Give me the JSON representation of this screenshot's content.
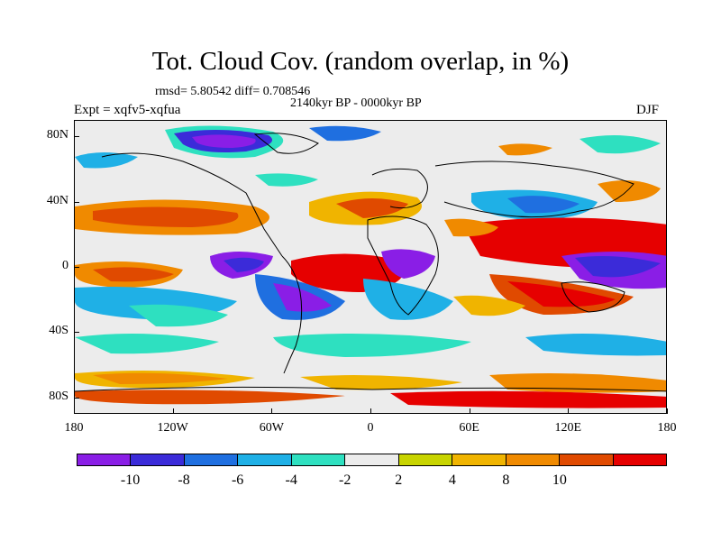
{
  "title": "Tot. Cloud Cov. (random overlap, in %)",
  "stats": "rmsd= 5.80542 diff= 0.708546",
  "period": "2140kyr BP - 0000kyr BP",
  "experiment": "Expt = xqfv5-xqfua",
  "season": "DJF",
  "lat_labels": [
    "80N",
    "40N",
    "0",
    "40S",
    "80S"
  ],
  "lat_values": [
    80,
    40,
    0,
    -40,
    -80
  ],
  "lon_labels": [
    "180",
    "120W",
    "60W",
    "0",
    "60E",
    "120E",
    "180"
  ],
  "lon_values": [
    -180,
    -120,
    -60,
    0,
    60,
    120,
    180
  ],
  "colorbar": {
    "labels": [
      "-10",
      "-8",
      "-6",
      "-4",
      "-2",
      "2",
      "4",
      "8",
      "10"
    ],
    "colors": [
      "#8a1ee6",
      "#3b2bd9",
      "#1f6fe0",
      "#1fb0e6",
      "#2ee0c0",
      "#ececec",
      "#c8d400",
      "#f0b400",
      "#f08a00",
      "#e04a00",
      "#e60000"
    ]
  },
  "field_colors": {
    "background": "#ececec",
    "neg_strong": "#8a1ee6",
    "neg_mid": "#3b2bd9",
    "neg_blue": "#1f6fe0",
    "neg_light": "#1fb0e6",
    "neg_weak": "#2ee0c0",
    "pos_weak": "#c8d400",
    "pos_mid": "#f0b400",
    "pos_orange": "#f08a00",
    "pos_strong": "#e04a00",
    "pos_red": "#e60000"
  }
}
